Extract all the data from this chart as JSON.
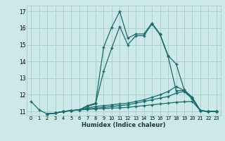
{
  "xlabel": "Humidex (Indice chaleur)",
  "background_color": "#cce8e8",
  "grid_color": "#aad0d0",
  "line_color": "#1a6b6b",
  "xlim": [
    -0.5,
    23.5
  ],
  "ylim": [
    10.75,
    17.35
  ],
  "yticks": [
    11,
    12,
    13,
    14,
    15,
    16,
    17
  ],
  "xticks": [
    0,
    1,
    2,
    3,
    4,
    5,
    6,
    7,
    8,
    9,
    10,
    11,
    12,
    13,
    14,
    15,
    16,
    17,
    18,
    19,
    20,
    21,
    22,
    23
  ],
  "lines": [
    {
      "x": [
        0,
        1,
        2,
        3,
        4,
        5,
        6,
        7,
        8,
        9,
        10,
        11,
        12,
        13,
        14,
        15,
        16,
        17,
        18,
        19,
        20,
        21,
        22,
        23
      ],
      "y": [
        11.6,
        11.1,
        10.85,
        10.9,
        11.0,
        11.05,
        11.1,
        11.35,
        11.5,
        14.85,
        16.05,
        17.0,
        15.4,
        15.65,
        15.65,
        16.3,
        15.65,
        14.35,
        13.85,
        12.3,
        11.85,
        11.05,
        11.0,
        11.0
      ]
    },
    {
      "x": [
        2,
        3,
        4,
        5,
        6,
        7,
        8,
        9,
        10,
        11,
        12,
        13,
        14,
        15,
        16,
        17,
        18,
        19,
        20,
        21,
        22,
        23
      ],
      "y": [
        10.85,
        10.9,
        11.0,
        11.05,
        11.1,
        11.3,
        11.45,
        13.4,
        14.8,
        16.1,
        15.0,
        15.55,
        15.55,
        16.25,
        15.6,
        14.3,
        12.25,
        12.25,
        11.8,
        11.05,
        11.0,
        11.0
      ]
    },
    {
      "x": [
        2,
        3,
        4,
        5,
        6,
        7,
        8,
        9,
        10,
        11,
        12,
        13,
        14,
        15,
        16,
        17,
        18,
        19,
        20,
        21,
        22,
        23
      ],
      "y": [
        10.85,
        10.9,
        11.0,
        11.05,
        11.1,
        11.2,
        11.3,
        11.35,
        11.4,
        11.45,
        11.5,
        11.6,
        11.7,
        11.85,
        12.0,
        12.2,
        12.5,
        12.25,
        11.8,
        11.05,
        11.0,
        11.0
      ]
    },
    {
      "x": [
        2,
        3,
        4,
        5,
        6,
        7,
        8,
        9,
        10,
        11,
        12,
        13,
        14,
        15,
        16,
        17,
        18,
        19,
        20,
        21,
        22,
        23
      ],
      "y": [
        10.85,
        10.9,
        11.0,
        11.05,
        11.1,
        11.15,
        11.2,
        11.25,
        11.3,
        11.35,
        11.4,
        11.5,
        11.6,
        11.7,
        11.8,
        11.9,
        12.1,
        12.2,
        11.75,
        11.05,
        11.0,
        11.0
      ]
    },
    {
      "x": [
        2,
        3,
        4,
        5,
        6,
        7,
        8,
        9,
        10,
        11,
        12,
        13,
        14,
        15,
        16,
        17,
        18,
        19,
        20,
        21,
        22,
        23
      ],
      "y": [
        10.85,
        10.9,
        11.0,
        11.05,
        11.1,
        11.12,
        11.15,
        11.18,
        11.2,
        11.22,
        11.25,
        11.3,
        11.35,
        11.4,
        11.45,
        11.5,
        11.55,
        11.58,
        11.6,
        11.05,
        11.0,
        11.0
      ]
    }
  ]
}
